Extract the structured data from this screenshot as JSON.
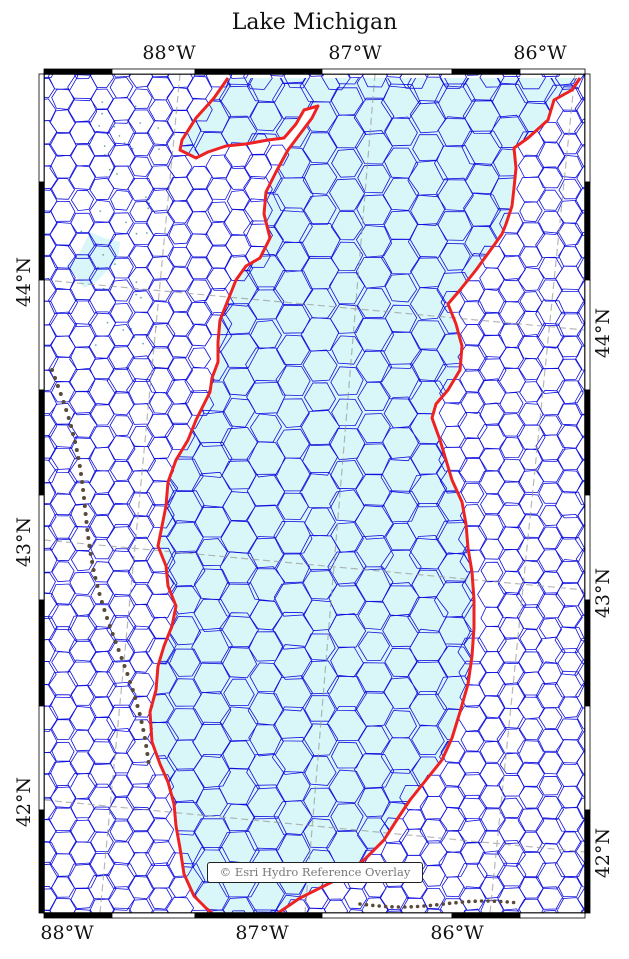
{
  "title": "Lake Michigan",
  "top_labels": [
    "88°W",
    "87°W",
    "86°W"
  ],
  "bottom_labels": [
    "88°W",
    "87°W",
    "86°W"
  ],
  "left_labels": [
    "44°N",
    "43°N",
    "42°N"
  ],
  "right_labels": [
    "44°N",
    "43°N",
    "42°N"
  ],
  "attribution": "© Esri Hydro Reference Overlay",
  "colors": {
    "water": "#d9f6f8",
    "mesh_edge": "#1111dd",
    "shoreline": "#ee2222",
    "graticule": "#999999",
    "frame": "#000000"
  }
}
